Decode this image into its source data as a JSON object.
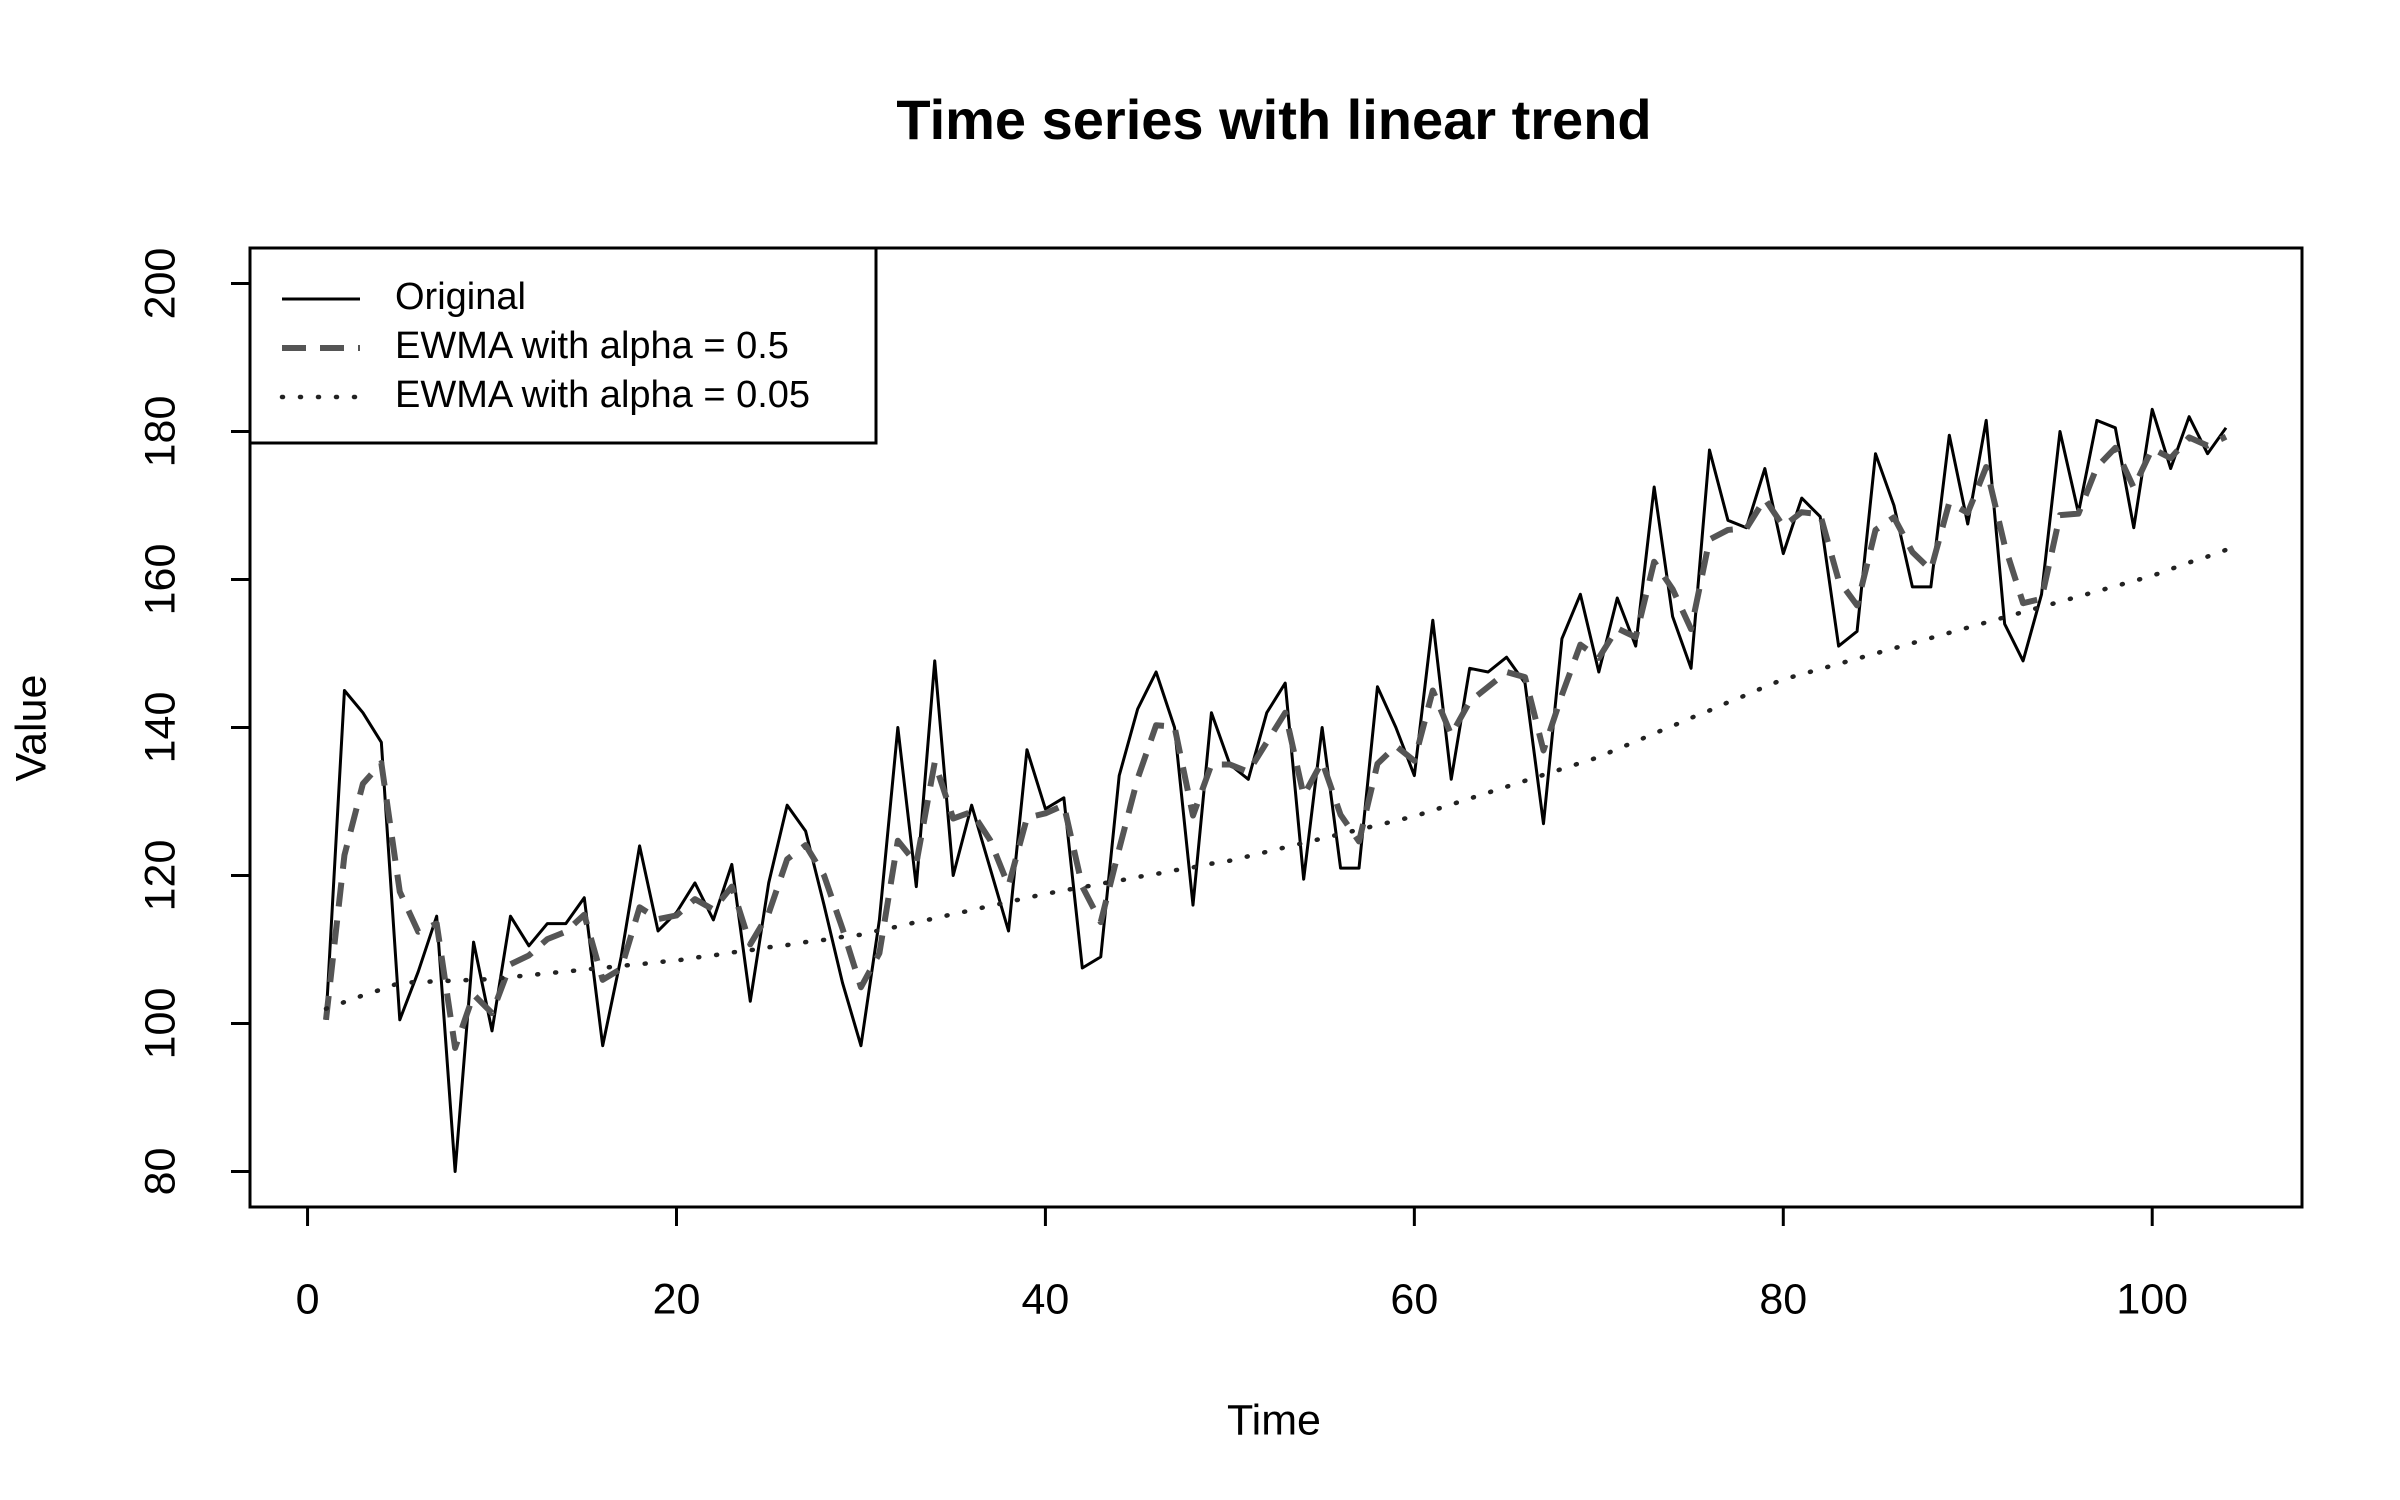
{
  "chart_data": {
    "type": "line",
    "title": "Time series with linear trend",
    "xlabel": "Time",
    "ylabel": "Value",
    "x": [
      1,
      2,
      3,
      4,
      5,
      6,
      7,
      8,
      9,
      10,
      11,
      12,
      13,
      14,
      15,
      16,
      17,
      18,
      19,
      20,
      21,
      22,
      23,
      24,
      25,
      26,
      27,
      28,
      29,
      30,
      31,
      32,
      33,
      34,
      35,
      36,
      37,
      38,
      39,
      40,
      41,
      42,
      43,
      44,
      45,
      46,
      47,
      48,
      49,
      50,
      51,
      52,
      53,
      54,
      55,
      56,
      57,
      58,
      59,
      60,
      61,
      62,
      63,
      64,
      65,
      66,
      67,
      68,
      69,
      70,
      71,
      72,
      73,
      74,
      75,
      76,
      77,
      78,
      79,
      80,
      81,
      82,
      83,
      84,
      85,
      86,
      87,
      88,
      89,
      90,
      91,
      92,
      93,
      94,
      95,
      96,
      97,
      98,
      99,
      100,
      101,
      102,
      103,
      104
    ],
    "series": [
      {
        "name": "Original",
        "color": "#000000",
        "linestyle": "solid",
        "values": [
          100.5,
          145,
          142,
          138,
          100.5,
          107,
          114.5,
          80,
          111,
          99,
          114.5,
          110.5,
          113.5,
          113.5,
          117,
          97,
          109,
          124,
          112.5,
          115,
          119,
          114,
          121.5,
          103,
          119,
          129.5,
          126,
          116,
          105.5,
          97,
          114,
          140,
          118.5,
          149,
          120,
          129.5,
          121,
          112.5,
          137,
          129,
          130.5,
          107.5,
          109,
          133.5,
          142.5,
          147.5,
          140,
          116,
          142,
          135,
          133,
          142,
          146,
          119.5,
          140,
          121,
          121,
          145.5,
          140,
          133.5,
          154.5,
          133,
          148,
          147.5,
          149.5,
          146,
          127,
          152,
          158,
          147.5,
          157.5,
          151,
          172.5,
          155,
          148,
          177.5,
          168,
          167,
          175,
          163.5,
          171,
          168.5,
          151,
          153,
          177,
          170,
          159,
          159,
          179.5,
          167.5,
          181.5,
          154,
          149,
          158,
          180,
          169,
          181.5,
          180.5,
          167,
          183,
          175,
          182,
          177,
          180.5
        ]
      },
      {
        "name": "EWMA with alpha = 0.5",
        "color": "#555555",
        "linestyle": "dashed",
        "values": [
          100.5,
          122.75,
          132.4,
          135.2,
          117.8,
          112.4,
          113.5,
          96.7,
          103.9,
          101.4,
          108,
          109.2,
          111.4,
          112.4,
          114.7,
          105.9,
          107.4,
          115.7,
          114.1,
          114.6,
          116.8,
          115.4,
          118.5,
          110.7,
          114.9,
          122.2,
          124.1,
          120,
          112.8,
          104.9,
          109.5,
          124.7,
          121.6,
          135.3,
          127.7,
          128.6,
          124.8,
          118.6,
          127.8,
          128.4,
          129.5,
          118.5,
          113.7,
          123.6,
          133.1,
          140.3,
          140.1,
          128.1,
          135,
          135,
          134,
          138,
          142,
          130.8,
          135.4,
          128.2,
          124.6,
          135.1,
          137.5,
          135.5,
          145,
          139,
          143.5,
          145.5,
          147.5,
          146.8,
          136.9,
          144.4,
          151.2,
          149.4,
          153.4,
          152.2,
          162.4,
          158.7,
          153.3,
          165.4,
          166.7,
          166.9,
          170.9,
          167.2,
          169.1,
          168.8,
          159.9,
          156.5,
          166.7,
          168.4,
          163.7,
          161.3,
          170.4,
          169,
          175.2,
          164.6,
          156.8,
          157.4,
          168.7,
          168.9,
          175.2,
          177.8,
          172.4,
          177.7,
          176.4,
          179.2,
          178.1,
          179.3
        ]
      },
      {
        "name": "EWMA with alpha = 0.05",
        "color": "#222222",
        "linestyle": "dotted",
        "values": [
          102,
          102.9,
          103.8,
          104.6,
          105.5,
          105.6,
          105.7,
          105.8,
          105.9,
          106,
          106.3,
          106.5,
          106.8,
          107,
          107.3,
          107.5,
          107.8,
          108,
          108.3,
          108.5,
          108.9,
          109.2,
          109.6,
          109.9,
          110.3,
          110.6,
          111,
          111.3,
          111.7,
          112,
          112.6,
          113.1,
          113.7,
          114.2,
          114.8,
          115.3,
          115.9,
          116.4,
          117,
          117.5,
          118,
          118.4,
          118.9,
          119.3,
          119.8,
          120.2,
          120.7,
          121.1,
          121.6,
          122,
          122.6,
          123.2,
          123.8,
          124.4,
          125,
          125.6,
          126.2,
          126.8,
          127.4,
          128,
          128.8,
          129.6,
          130.4,
          131.2,
          132,
          132.8,
          133.6,
          134.4,
          135.2,
          136,
          137.1,
          138.1,
          139.2,
          140.2,
          141.3,
          142.3,
          143.4,
          144.4,
          145.5,
          146.5,
          147.2,
          147.9,
          148.6,
          149.3,
          150,
          150.7,
          151.4,
          152.1,
          152.8,
          153.5,
          154.2,
          154.9,
          155.6,
          156.3,
          157,
          157.7,
          158.4,
          159.1,
          159.8,
          160.5,
          161.4,
          162.3,
          163.1,
          164
        ]
      }
    ],
    "xlim": [
      -3.12,
      108.12
    ],
    "xticks": [
      0,
      20,
      40,
      60,
      80,
      100
    ],
    "ylim": [
      75.2,
      204.8
    ],
    "yticks": [
      80,
      100,
      120,
      140,
      160,
      180,
      200
    ],
    "grid": false,
    "legend": "top-left"
  }
}
